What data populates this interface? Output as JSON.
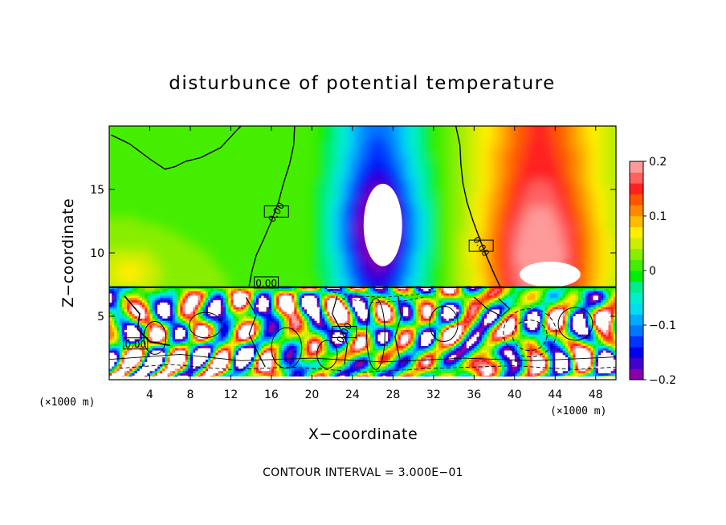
{
  "chart_data": {
    "type": "heatmap",
    "title": "disturbunce of potential temperature",
    "xlabel": "X−coordinate",
    "ylabel": "Z−coordinate",
    "x_unit": "(×1000 m)",
    "z_unit": "(×1000 m)",
    "xlim": [
      0,
      50
    ],
    "ylim": [
      0,
      20
    ],
    "x_ticks": [
      4,
      8,
      12,
      16,
      20,
      24,
      28,
      32,
      36,
      40,
      44,
      48
    ],
    "y_ticks": [
      5,
      10,
      15
    ],
    "colorbar": {
      "ticks": [
        "0.2",
        "0.1",
        "0",
        "−0.1",
        "−0.2"
      ],
      "range": [
        -0.2,
        0.2
      ],
      "colors": [
        "#8800aa",
        "#4400cc",
        "#0000ee",
        "#0033ff",
        "#0077ff",
        "#00aaff",
        "#00ddee",
        "#00eecc",
        "#00ee88",
        "#00ee00",
        "#44ee00",
        "#88ee00",
        "#ccee00",
        "#ffee00",
        "#ffbb00",
        "#ff8800",
        "#ff5500",
        "#ff2020",
        "#ff6060",
        "#ff9a9a"
      ]
    },
    "contour_labels": [
      "0.00",
      "0.00",
      "0.00",
      "0.00",
      "0.00"
    ],
    "annotation": "CONTOUR INTERVAL = 3.000E−01"
  }
}
